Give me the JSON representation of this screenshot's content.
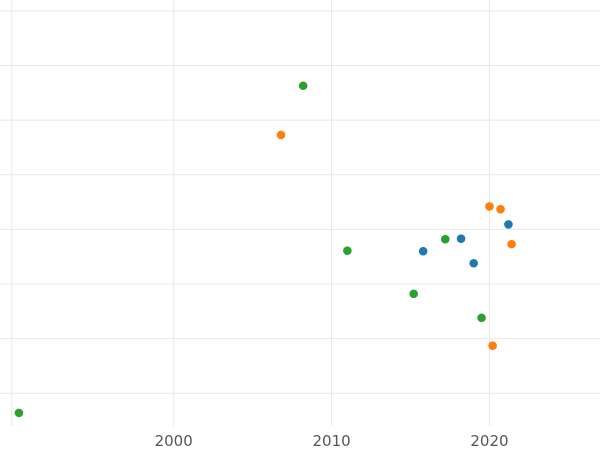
{
  "chart_data": {
    "type": "scatter",
    "title": "",
    "xlabel": "",
    "ylabel": "",
    "xlim": [
      1989,
      2027
    ],
    "ylim": [
      0,
      7.8
    ],
    "x_ticks": [
      2000,
      2010,
      2020
    ],
    "x_tick_labels": [
      "2000",
      "2010",
      "2020"
    ],
    "y_gridlines": [
      0.6,
      1.6,
      2.6,
      3.6,
      4.6,
      5.6,
      6.6,
      7.6
    ],
    "grid": true,
    "legend": "none",
    "series": [
      {
        "color": "#1f77b4",
        "points": [
          {
            "x": 2015.8,
            "y": 3.2
          },
          {
            "x": 2018.2,
            "y": 3.43
          },
          {
            "x": 2019.0,
            "y": 2.98
          },
          {
            "x": 2021.2,
            "y": 3.69
          }
        ]
      },
      {
        "color": "#ff7f0e",
        "points": [
          {
            "x": 2006.8,
            "y": 5.33
          },
          {
            "x": 2020.0,
            "y": 4.02
          },
          {
            "x": 2020.7,
            "y": 3.97
          },
          {
            "x": 2021.4,
            "y": 3.33
          },
          {
            "x": 2020.2,
            "y": 1.47
          }
        ]
      },
      {
        "color": "#2ca02c",
        "points": [
          {
            "x": 1990.2,
            "y": 0.24
          },
          {
            "x": 2008.2,
            "y": 6.23
          },
          {
            "x": 2011.0,
            "y": 3.21
          },
          {
            "x": 2015.2,
            "y": 2.42
          },
          {
            "x": 2017.2,
            "y": 3.42
          },
          {
            "x": 2019.5,
            "y": 1.98
          }
        ]
      }
    ]
  }
}
